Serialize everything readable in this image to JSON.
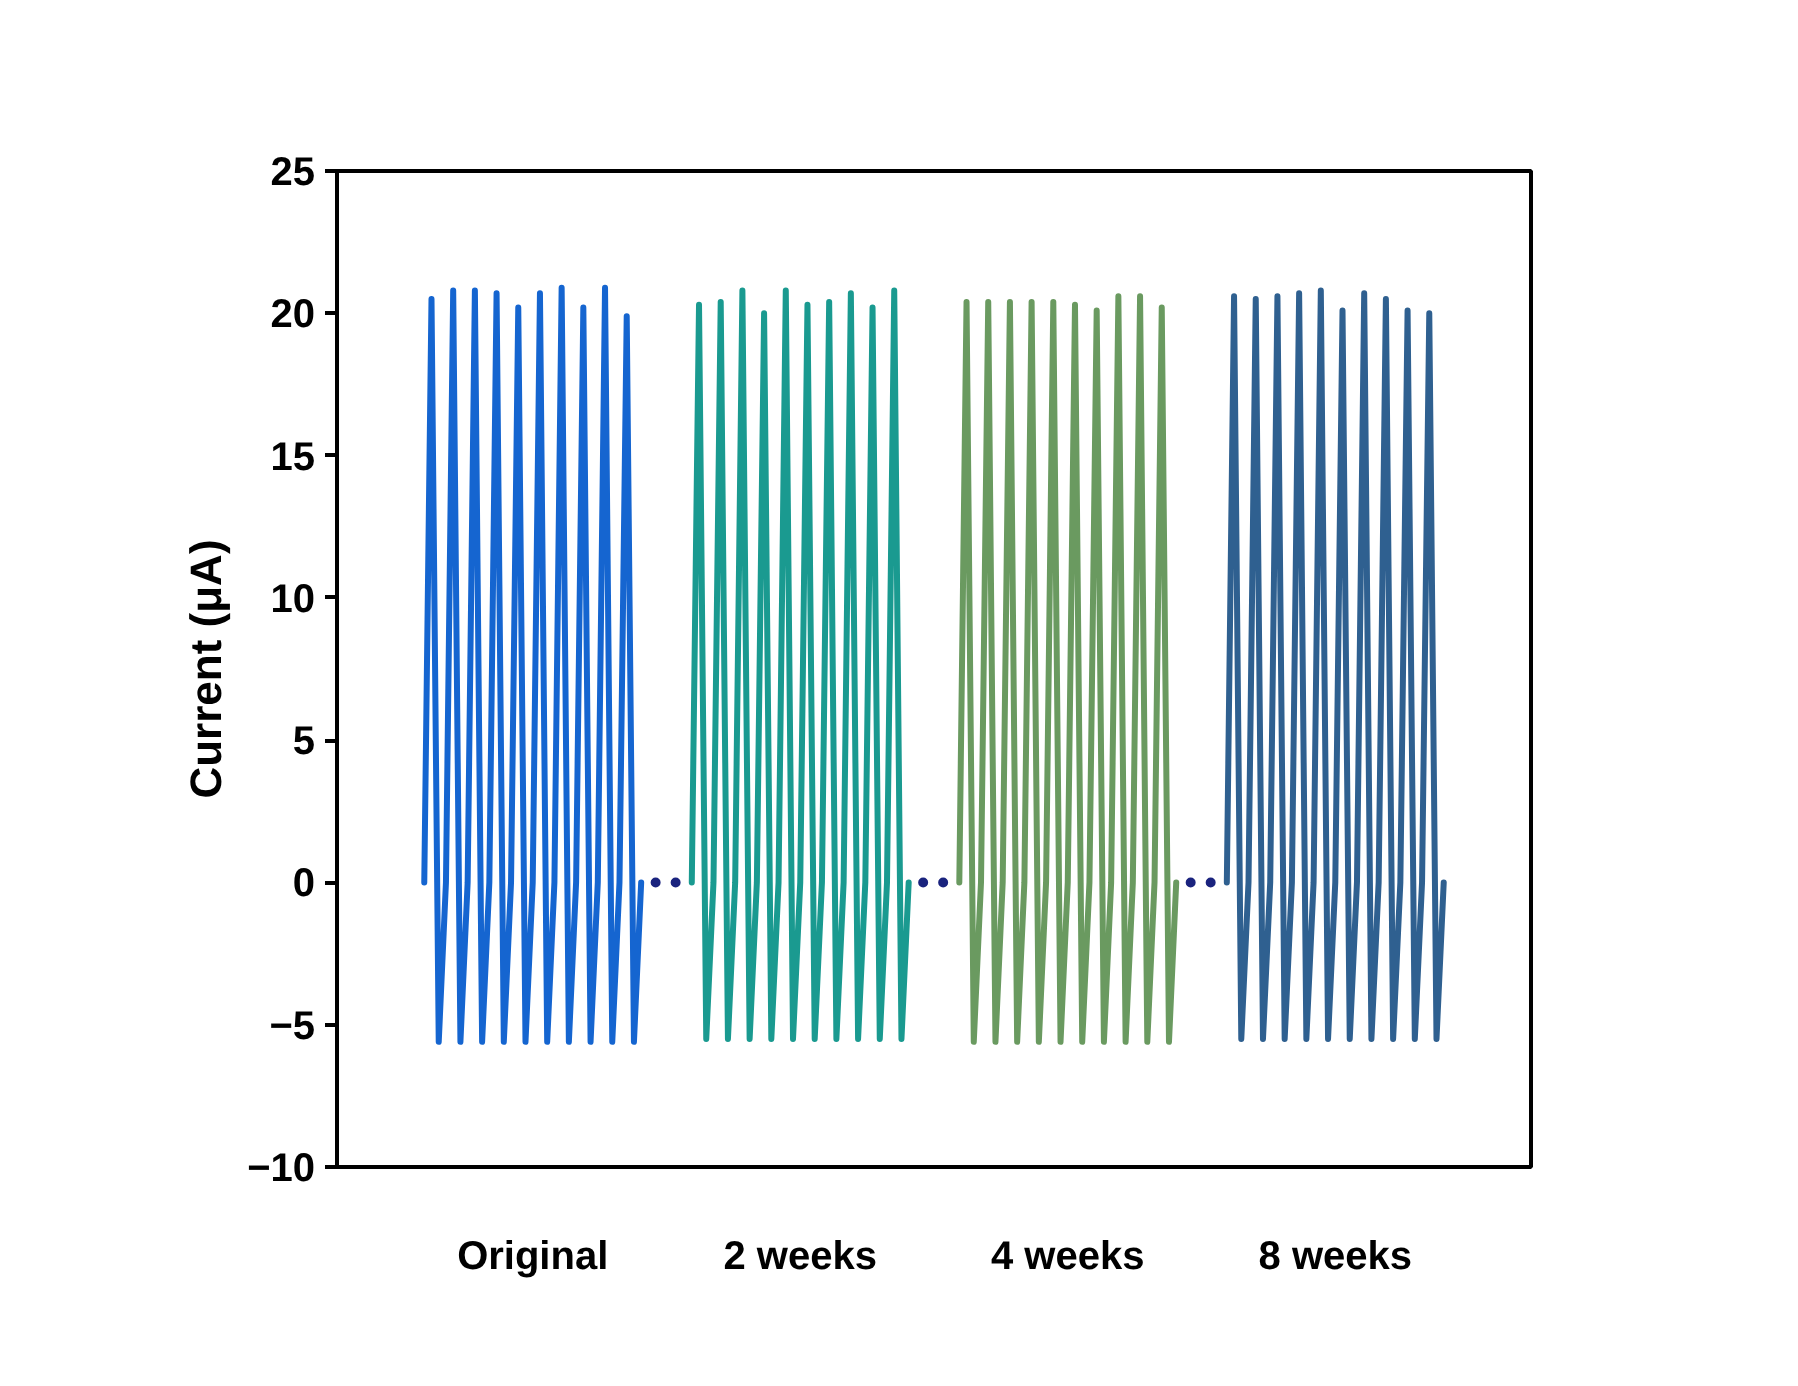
{
  "chart_data": {
    "type": "line",
    "ylabel": "Current (μA)",
    "ylim": [
      -10,
      25
    ],
    "yticks": [
      -10,
      -5,
      0,
      5,
      10,
      15,
      20,
      25
    ],
    "categories": [
      null,
      null,
      null,
      null,
      null,
      null,
      null,
      null,
      null,
      null,
      null,
      null,
      null,
      null,
      null,
      "Original",
      null,
      null,
      null,
      null,
      null,
      null,
      null,
      null,
      null,
      null,
      null,
      null,
      null,
      null,
      null,
      null,
      null,
      null,
      null,
      null,
      null,
      null,
      null,
      null,
      null,
      null,
      null,
      null,
      null,
      null,
      null,
      null,
      null,
      null,
      null,
      null,
      "2 weeks",
      null,
      null,
      null,
      null,
      null,
      null,
      null,
      null,
      null,
      null,
      null,
      null,
      null,
      null,
      null,
      null,
      null,
      null,
      null,
      null,
      null,
      null,
      null,
      null,
      null,
      null,
      null,
      null,
      null,
      null,
      null,
      null,
      null,
      null,
      null,
      null,
      "4 weeks",
      null,
      null,
      null,
      null,
      null,
      null,
      null,
      null,
      null,
      null,
      null,
      null,
      null,
      null,
      null,
      null,
      null,
      null,
      null,
      null,
      null,
      null,
      null,
      null,
      null,
      null,
      null,
      null,
      null,
      null,
      null,
      null,
      null,
      null,
      null,
      null,
      "8 weeks",
      null,
      null,
      null,
      null,
      null,
      null,
      null,
      null,
      null,
      null,
      null,
      null,
      null,
      null,
      null
    ],
    "grid": false,
    "line_style": "solid",
    "marker": "none",
    "series": [
      {
        "color": "#1565d0",
        "values": [
          0,
          20.5,
          -5.6,
          0,
          20.8,
          -5.6,
          0,
          20.8,
          -5.6,
          0,
          20.7,
          -5.6,
          0,
          20.2,
          -5.6,
          0,
          20.7,
          -5.6,
          0,
          20.9,
          -5.6,
          0,
          20.2,
          -5.6,
          0,
          20.9,
          -5.6,
          0,
          19.9,
          -5.6,
          0,
          null,
          null,
          null,
          null,
          null,
          null,
          null,
          null,
          null,
          null,
          null,
          null,
          null,
          null,
          null,
          null,
          null,
          null,
          null,
          null,
          null,
          null,
          null,
          null,
          null,
          null,
          null,
          null,
          null,
          null,
          null,
          null,
          null,
          null,
          null,
          null,
          null,
          null,
          null,
          null,
          null,
          null,
          null,
          null,
          null,
          null,
          null,
          null,
          null,
          null,
          null,
          null,
          null,
          null,
          null,
          null,
          null,
          null,
          null,
          null,
          null,
          null,
          null,
          null,
          null,
          null,
          null,
          null,
          null,
          null,
          null,
          null,
          null,
          null,
          null,
          null,
          null,
          null,
          null,
          null,
          null,
          null,
          null,
          null,
          null,
          null,
          null,
          null,
          null,
          null,
          null,
          null,
          null,
          null,
          null,
          null,
          null,
          null,
          null,
          null,
          null,
          null,
          null,
          null,
          null,
          null,
          null,
          null,
          null,
          null,
          null
        ]
      },
      {
        "color": "#1a9a90",
        "values": [
          null,
          null,
          null,
          null,
          null,
          null,
          null,
          null,
          null,
          null,
          null,
          null,
          null,
          null,
          null,
          null,
          null,
          null,
          null,
          null,
          null,
          null,
          null,
          null,
          null,
          null,
          null,
          null,
          null,
          null,
          null,
          null,
          null,
          null,
          null,
          null,
          null,
          0,
          20.3,
          -5.5,
          0,
          20.4,
          -5.5,
          0,
          20.8,
          -5.5,
          0,
          20.0,
          -5.5,
          0,
          20.8,
          -5.5,
          0,
          20.3,
          -5.5,
          0,
          20.4,
          -5.5,
          0,
          20.7,
          -5.5,
          0,
          20.2,
          -5.5,
          0,
          20.8,
          -5.5,
          0,
          null,
          null,
          null,
          null,
          null,
          null,
          null,
          null,
          null,
          null,
          null,
          null,
          null,
          null,
          null,
          null,
          null,
          null,
          null,
          null,
          null,
          null,
          null,
          null,
          null,
          null,
          null,
          null,
          null,
          null,
          null,
          null,
          null,
          null,
          null,
          null,
          null,
          null,
          null,
          null,
          null,
          null,
          null,
          null,
          null,
          null,
          null,
          null,
          null,
          null,
          null,
          null,
          null,
          null,
          null,
          null,
          null,
          null,
          null,
          null,
          null,
          null,
          null,
          null,
          null,
          null,
          null,
          null,
          null,
          null,
          null,
          null,
          null,
          null
        ]
      },
      {
        "color": "#6a9a60",
        "values": [
          null,
          null,
          null,
          null,
          null,
          null,
          null,
          null,
          null,
          null,
          null,
          null,
          null,
          null,
          null,
          null,
          null,
          null,
          null,
          null,
          null,
          null,
          null,
          null,
          null,
          null,
          null,
          null,
          null,
          null,
          null,
          null,
          null,
          null,
          null,
          null,
          null,
          null,
          null,
          null,
          null,
          null,
          null,
          null,
          null,
          null,
          null,
          null,
          null,
          null,
          null,
          null,
          null,
          null,
          null,
          null,
          null,
          null,
          null,
          null,
          null,
          null,
          null,
          null,
          null,
          null,
          null,
          null,
          null,
          null,
          null,
          null,
          null,
          null,
          0,
          20.4,
          -5.6,
          0,
          20.4,
          -5.6,
          0,
          20.4,
          -5.6,
          0,
          20.4,
          -5.6,
          0,
          20.4,
          -5.6,
          0,
          20.3,
          -5.6,
          0,
          20.1,
          -5.6,
          0,
          20.6,
          -5.6,
          0,
          20.6,
          -5.6,
          0,
          20.2,
          -5.6,
          0,
          null,
          null,
          null,
          null,
          null,
          null,
          null,
          null,
          null,
          null,
          null,
          null,
          null,
          null,
          null,
          null,
          null,
          null,
          null,
          null,
          null,
          null,
          null,
          null,
          null,
          null,
          null,
          null,
          null,
          null,
          null,
          null,
          null,
          null,
          null,
          null,
          null
        ]
      },
      {
        "color": "#2f6090",
        "values": [
          null,
          null,
          null,
          null,
          null,
          null,
          null,
          null,
          null,
          null,
          null,
          null,
          null,
          null,
          null,
          null,
          null,
          null,
          null,
          null,
          null,
          null,
          null,
          null,
          null,
          null,
          null,
          null,
          null,
          null,
          null,
          null,
          null,
          null,
          null,
          null,
          null,
          null,
          null,
          null,
          null,
          null,
          null,
          null,
          null,
          null,
          null,
          null,
          null,
          null,
          null,
          null,
          null,
          null,
          null,
          null,
          null,
          null,
          null,
          null,
          null,
          null,
          null,
          null,
          null,
          null,
          null,
          null,
          null,
          null,
          null,
          null,
          null,
          null,
          null,
          null,
          null,
          null,
          null,
          null,
          null,
          null,
          null,
          null,
          null,
          null,
          null,
          null,
          null,
          null,
          null,
          null,
          null,
          null,
          null,
          null,
          null,
          null,
          null,
          null,
          null,
          null,
          null,
          null,
          null,
          null,
          null,
          null,
          null,
          null,
          null,
          0,
          20.6,
          -5.5,
          0,
          20.5,
          -5.5,
          0,
          20.6,
          -5.5,
          0,
          20.7,
          -5.5,
          0,
          20.8,
          -5.5,
          0,
          20.1,
          -5.5,
          0,
          20.7,
          -5.5,
          0,
          20.5,
          -5.5,
          0,
          20.1,
          -5.5,
          0,
          20.0,
          -5.5,
          0
        ]
      },
      {
        "color": "#1a237e",
        "line_style": "dotted",
        "values": [
          null,
          null,
          null,
          null,
          null,
          null,
          null,
          null,
          null,
          null,
          null,
          null,
          null,
          null,
          null,
          null,
          null,
          null,
          null,
          null,
          null,
          null,
          null,
          null,
          null,
          null,
          null,
          null,
          null,
          null,
          null,
          null,
          0,
          0,
          0,
          0,
          null,
          null,
          null,
          null,
          null,
          null,
          null,
          null,
          null,
          null,
          null,
          null,
          null,
          null,
          null,
          null,
          null,
          null,
          null,
          null,
          null,
          null,
          null,
          null,
          null,
          null,
          null,
          null,
          null,
          null,
          null,
          null,
          null,
          0,
          0,
          0,
          0,
          null,
          null,
          null,
          null,
          null,
          null,
          null,
          null,
          null,
          null,
          null,
          null,
          null,
          null,
          null,
          null,
          null,
          null,
          null,
          null,
          null,
          null,
          null,
          null,
          null,
          null,
          null,
          null,
          null,
          null,
          null,
          null,
          null,
          0,
          0,
          0,
          0,
          null,
          null,
          null,
          null,
          null,
          null,
          null,
          null,
          null,
          null,
          null,
          null,
          null,
          null,
          null,
          null,
          null,
          null,
          null,
          null,
          null,
          null,
          null,
          null,
          null,
          null,
          null,
          null,
          null,
          null,
          null,
          null
        ]
      }
    ]
  }
}
